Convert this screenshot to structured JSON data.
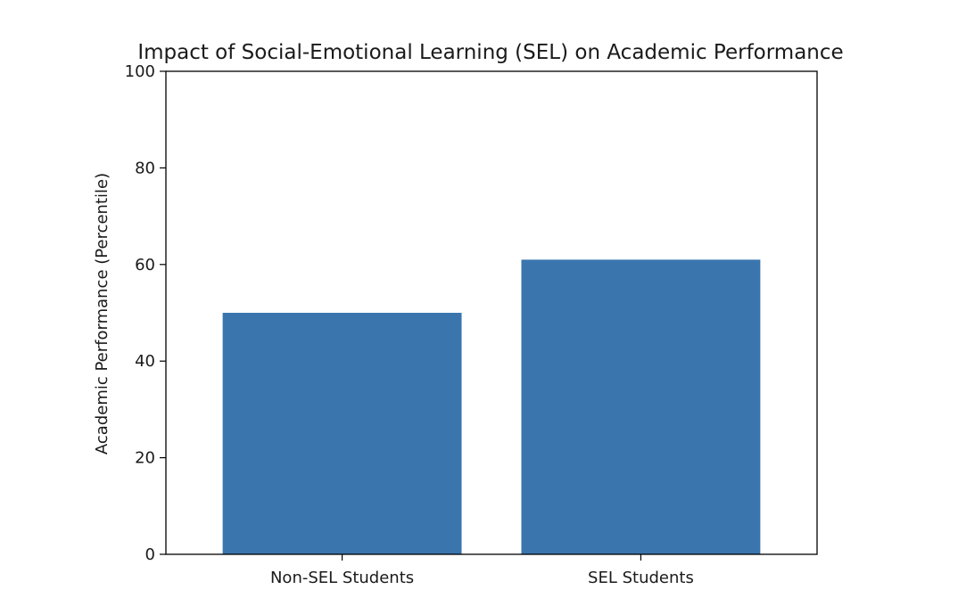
{
  "chart_data": {
    "type": "bar",
    "title": "Impact of Social-Emotional Learning (SEL) on Academic Performance",
    "xlabel": "",
    "ylabel": "Academic Performance (Percentile)",
    "categories": [
      "Non-SEL Students",
      "SEL Students"
    ],
    "values": [
      50,
      61
    ],
    "ylim": [
      0,
      100
    ],
    "yticks": [
      0,
      20,
      40,
      60,
      80,
      100
    ],
    "bar_color": "#3a75ae",
    "grid": false,
    "legend": "none"
  }
}
